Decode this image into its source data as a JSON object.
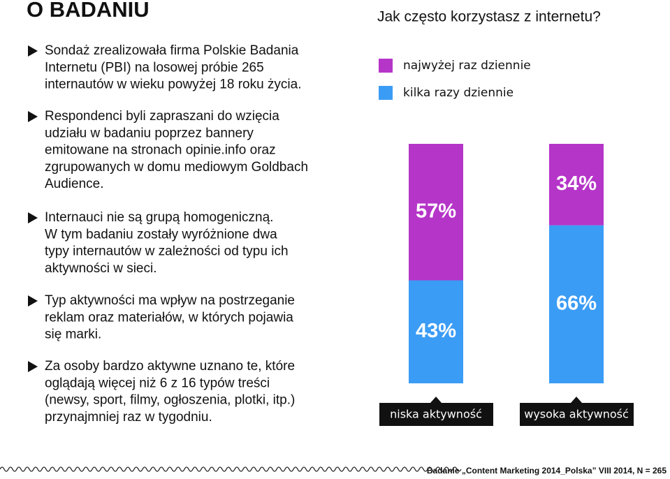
{
  "header": {
    "title": "O BADANIU"
  },
  "bullets": [
    [
      "Sondaż zrealizowała firma Polskie Badania",
      "Internetu (PBI) na losowej próbie 265",
      "internautów w wieku powyżej 18 roku życia."
    ],
    [
      "Respondenci byli zapraszani do wzięcia",
      "udziału w badaniu poprzez bannery",
      "emitowane na stronach opinie.info oraz",
      "zgrupowanych w domu mediowym Goldbach",
      "Audience."
    ],
    [
      "Internauci nie są grupą homogeniczną.",
      "W tym badaniu zostały wyróżnione dwa",
      "typy internautów w zależności od typu ich",
      "aktywności w sieci."
    ],
    [
      "Typ aktywności ma wpływ na postrzeganie",
      "reklam oraz materiałów, w których pojawia",
      "się marki."
    ],
    [
      "Za osoby bardzo aktywne uznano te, które",
      "oglądają więcej niż 6 z 16 typów treści",
      "(newsy, sport, filmy, ogłoszenia, plotki, itp.)",
      "przynajmniej raz w tygodniu."
    ]
  ],
  "footer": "Badanie „Content Marketing 2014_Polska” VIII 2014, N = 265",
  "chart_data": {
    "type": "stacked-bar",
    "title": "Jak często korzystasz z internetu?",
    "categories": [
      "niska aktywność",
      "wysoka aktywność"
    ],
    "ylim": [
      0,
      100
    ],
    "series": [
      {
        "name": "najwyżej raz dziennie",
        "color": "#b535c8",
        "values": [
          57,
          34
        ],
        "value_labels": [
          "57%",
          "34%"
        ]
      },
      {
        "name": "kilka razy dziennie",
        "color": "#3b9cf5",
        "values": [
          43,
          66
        ],
        "value_labels": [
          "43%",
          "66%"
        ]
      }
    ]
  }
}
